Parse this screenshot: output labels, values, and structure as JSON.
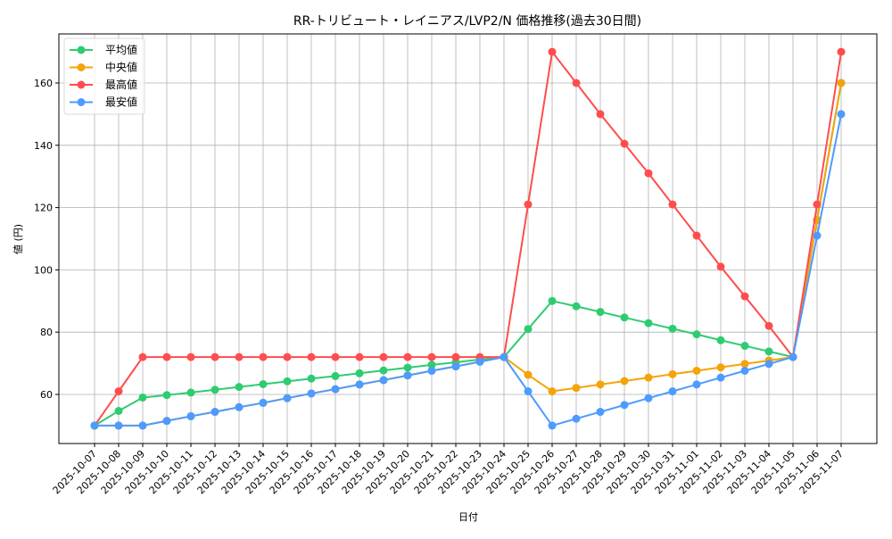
{
  "chart_data": {
    "type": "line",
    "title": "RR-トリビュート・レイニアス/LVP2/N 価格推移(過去30日間)",
    "xlabel": "日付",
    "ylabel": "値 (円)",
    "ylim": [
      44,
      175
    ],
    "yticks": [
      60,
      80,
      100,
      120,
      140,
      160
    ],
    "grid": true,
    "legend_position": "upper left",
    "categories": [
      "2025-10-07",
      "2025-10-08",
      "2025-10-09",
      "2025-10-10",
      "2025-10-11",
      "2025-10-12",
      "2025-10-13",
      "2025-10-14",
      "2025-10-15",
      "2025-10-16",
      "2025-10-17",
      "2025-10-18",
      "2025-10-19",
      "2025-10-20",
      "2025-10-21",
      "2025-10-22",
      "2025-10-23",
      "2025-10-24",
      "2025-10-25",
      "2025-10-26",
      "2025-10-27",
      "2025-10-28",
      "2025-10-29",
      "2025-10-30",
      "2025-10-31",
      "2025-11-01",
      "2025-11-02",
      "2025-11-03",
      "2025-11-04",
      "2025-11-05",
      "2025-11-06",
      "2025-11-07"
    ],
    "series": [
      {
        "name": "平均値",
        "color": "#2ecc71",
        "values": [
          50,
          54.7,
          59,
          59.8,
          60.6,
          61.5,
          62.4,
          63.3,
          64.2,
          65.1,
          65.9,
          66.8,
          67.7,
          68.6,
          69.5,
          70.3,
          71.2,
          72,
          81,
          90,
          88.3,
          86.5,
          84.7,
          82.9,
          81.1,
          79.3,
          77.4,
          75.6,
          73.8,
          72,
          116,
          160
        ]
      },
      {
        "name": "中央値",
        "color": "#f5a30a",
        "values": [
          50,
          50,
          50,
          51.5,
          53,
          54.4,
          55.9,
          57.3,
          58.8,
          60.3,
          61.7,
          63.2,
          64.6,
          66.1,
          67.6,
          69,
          70.5,
          72,
          66.3,
          61,
          62.1,
          63.2,
          64.3,
          65.4,
          66.5,
          67.6,
          68.7,
          69.8,
          70.9,
          72,
          116,
          160
        ]
      },
      {
        "name": "最高値",
        "color": "#ff4d4d",
        "values": [
          50,
          61,
          72,
          72,
          72,
          72,
          72,
          72,
          72,
          72,
          72,
          72,
          72,
          72,
          72,
          72,
          72,
          72,
          121,
          170,
          160,
          150,
          140.5,
          131,
          121,
          111,
          101,
          91.5,
          82,
          72,
          121,
          170
        ]
      },
      {
        "name": "最安値",
        "color": "#4d9bff",
        "values": [
          50,
          50,
          50,
          51.5,
          53,
          54.4,
          55.9,
          57.3,
          58.8,
          60.3,
          61.7,
          63.2,
          64.6,
          66.1,
          67.6,
          69,
          70.5,
          72,
          61,
          50,
          52.2,
          54.4,
          56.6,
          58.8,
          61,
          63.2,
          65.4,
          67.6,
          69.8,
          72,
          111,
          150
        ]
      }
    ]
  }
}
